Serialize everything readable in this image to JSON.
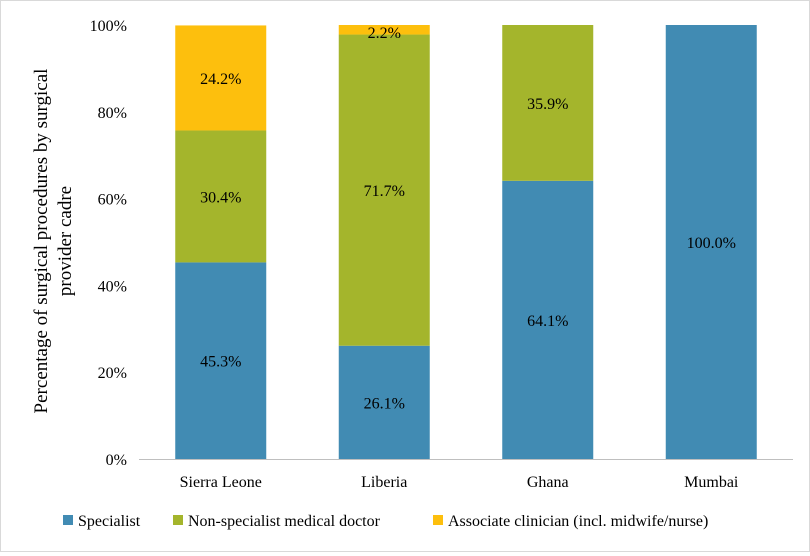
{
  "chart_data": {
    "type": "bar",
    "stacked": true,
    "categories": [
      "Sierra Leone",
      "Liberia",
      "Ghana",
      "Mumbai"
    ],
    "series": [
      {
        "name": "Specialist",
        "color": "#418bb3",
        "values": [
          45.3,
          26.1,
          64.1,
          100.0
        ]
      },
      {
        "name": "Non-specialist medical doctor",
        "color": "#a4b52c",
        "values": [
          30.4,
          71.7,
          35.9,
          null
        ]
      },
      {
        "name": "Associate clinician (incl. midwife/nurse)",
        "color": "#fdbf0d",
        "values": [
          24.2,
          2.2,
          null,
          null
        ]
      }
    ],
    "data_labels": [
      [
        "45.3%",
        "26.1%",
        "64.1%",
        "100.0%"
      ],
      [
        "30.4%",
        "71.7%",
        "35.9%",
        null
      ],
      [
        "24.2%",
        "2.2%",
        null,
        null
      ]
    ],
    "ylabel": "Percentage of surgical procedures by surgical provider cadre",
    "ylabel_lines": [
      "Percentage of surgical procedures by surgical",
      "provider cadre"
    ],
    "xlabel": "",
    "yticks": [
      0,
      20,
      40,
      60,
      80,
      100
    ],
    "ytick_labels": [
      "0%",
      "20%",
      "40%",
      "60%",
      "80%",
      "100%"
    ],
    "ylim": [
      0,
      100
    ],
    "grid": false,
    "legend_position": "bottom"
  }
}
